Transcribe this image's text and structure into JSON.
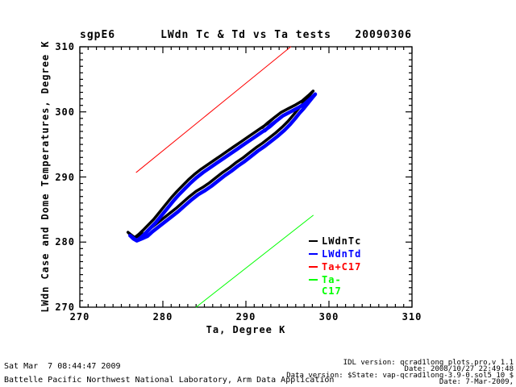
{
  "header": {
    "site": "sgpE6",
    "title": "LWdn Tc & Td vs Ta tests",
    "date": "20090306"
  },
  "axes": {
    "xlabel": "Ta, Degree K",
    "ylabel": "LWdn Case and Dome Temperatures, Degree K"
  },
  "legend": {
    "entries": [
      {
        "label": "LWdnTc",
        "color": "#000000"
      },
      {
        "label": "LWdnTd",
        "color": "#0000ff"
      },
      {
        "label": "Ta+C17",
        "color": "#ff0000"
      },
      {
        "label": "Ta-C17",
        "color": "#00ff00"
      }
    ]
  },
  "footer": {
    "left_line1": "Sat Mar  7 08:44:47 2009",
    "left_line2": "Battelle Pacific Northwest National Laboratory, Arm Data Application",
    "right_line1": "IDL version: qcrad1long_plots.pro,v 1.1",
    "right_line2": "Date: 2008/10/27 22:49:48",
    "right_line3": "Data version: $State: vap-qcrad1long-3.9-0.sol5_10 $",
    "right_line4": "Date: 7-Mar-2009,"
  },
  "chart_data": {
    "type": "line",
    "title": "LWdn Tc & Td vs Ta tests",
    "site": "sgpE6",
    "file_date": "20090306",
    "xlabel": "Ta, Degree K",
    "ylabel": "LWdn Case and Dome Temperatures, Degree K",
    "xlim": [
      270,
      310
    ],
    "ylim": [
      270,
      310
    ],
    "xticks": [
      270,
      280,
      290,
      300,
      310
    ],
    "yticks": [
      270,
      280,
      290,
      300,
      310
    ],
    "minor_tick_step": 1,
    "grid": false,
    "legend_position": "right-center",
    "series": [
      {
        "name": "LWdnTc",
        "color": "#000000",
        "width": 3.5,
        "points": [
          [
            275.8,
            281.5
          ],
          [
            276.2,
            281.0
          ],
          [
            276.6,
            280.7
          ],
          [
            277.2,
            281.0
          ],
          [
            277.9,
            281.4
          ],
          [
            278.5,
            282.1
          ],
          [
            279.2,
            282.8
          ],
          [
            280.0,
            283.6
          ],
          [
            280.8,
            284.4
          ],
          [
            281.6,
            285.2
          ],
          [
            282.4,
            286.1
          ],
          [
            283.2,
            287.0
          ],
          [
            284.0,
            287.8
          ],
          [
            284.8,
            288.4
          ],
          [
            285.6,
            289.1
          ],
          [
            286.4,
            289.9
          ],
          [
            287.2,
            290.7
          ],
          [
            288.0,
            291.4
          ],
          [
            288.8,
            292.2
          ],
          [
            289.6,
            292.9
          ],
          [
            290.4,
            293.7
          ],
          [
            291.2,
            294.5
          ],
          [
            292.0,
            295.2
          ],
          [
            292.8,
            296.0
          ],
          [
            293.6,
            296.8
          ],
          [
            294.4,
            297.7
          ],
          [
            295.1,
            298.6
          ],
          [
            295.7,
            299.5
          ],
          [
            296.2,
            300.3
          ],
          [
            296.7,
            301.0
          ],
          [
            297.2,
            301.8
          ],
          [
            297.7,
            302.6
          ],
          [
            298.1,
            303.2
          ],
          [
            297.5,
            302.5
          ],
          [
            296.8,
            301.7
          ],
          [
            296.0,
            301.1
          ],
          [
            295.1,
            300.5
          ],
          [
            294.2,
            299.9
          ],
          [
            293.4,
            299.1
          ],
          [
            292.6,
            298.3
          ],
          [
            292.0,
            297.6
          ],
          [
            292.7,
            298.4
          ],
          [
            293.4,
            299.1
          ],
          [
            292.6,
            298.2
          ],
          [
            291.8,
            297.5
          ],
          [
            291.0,
            296.8
          ],
          [
            290.2,
            296.1
          ],
          [
            289.4,
            295.4
          ],
          [
            288.6,
            294.7
          ],
          [
            287.8,
            294.0
          ],
          [
            287.0,
            293.3
          ],
          [
            286.2,
            292.6
          ],
          [
            285.4,
            291.9
          ],
          [
            284.6,
            291.2
          ],
          [
            283.8,
            290.4
          ],
          [
            283.1,
            289.6
          ],
          [
            282.4,
            288.7
          ],
          [
            281.7,
            287.8
          ],
          [
            281.0,
            286.8
          ],
          [
            280.3,
            285.7
          ],
          [
            279.6,
            284.6
          ],
          [
            278.9,
            283.5
          ],
          [
            278.2,
            282.6
          ],
          [
            277.6,
            281.8
          ],
          [
            277.1,
            281.2
          ],
          [
            276.6,
            280.7
          ],
          [
            276.1,
            281.2
          ],
          [
            275.8,
            281.5
          ]
        ]
      },
      {
        "name": "LWdnTd",
        "color": "#0000ff",
        "width": 4.5,
        "points": [
          [
            276.05,
            281.0
          ],
          [
            276.45,
            280.5
          ],
          [
            276.85,
            280.2
          ],
          [
            277.45,
            280.5
          ],
          [
            278.15,
            280.9
          ],
          [
            278.75,
            281.6
          ],
          [
            279.45,
            282.3
          ],
          [
            280.25,
            283.1
          ],
          [
            281.05,
            283.9
          ],
          [
            281.85,
            284.7
          ],
          [
            282.65,
            285.6
          ],
          [
            283.45,
            286.5
          ],
          [
            284.25,
            287.3
          ],
          [
            285.05,
            287.9
          ],
          [
            285.85,
            288.6
          ],
          [
            286.65,
            289.4
          ],
          [
            287.45,
            290.2
          ],
          [
            288.25,
            290.9
          ],
          [
            289.05,
            291.7
          ],
          [
            289.85,
            292.4
          ],
          [
            290.65,
            293.2
          ],
          [
            291.45,
            294.0
          ],
          [
            292.25,
            294.7
          ],
          [
            293.05,
            295.5
          ],
          [
            293.85,
            296.3
          ],
          [
            294.65,
            297.2
          ],
          [
            295.35,
            298.1
          ],
          [
            295.95,
            299.0
          ],
          [
            296.45,
            299.8
          ],
          [
            296.95,
            300.5
          ],
          [
            297.45,
            301.3
          ],
          [
            297.95,
            302.1
          ],
          [
            298.35,
            302.7
          ],
          [
            297.75,
            302.0
          ],
          [
            297.05,
            301.2
          ],
          [
            296.25,
            300.6
          ],
          [
            295.35,
            300.0
          ],
          [
            294.45,
            299.4
          ],
          [
            293.65,
            298.6
          ],
          [
            292.85,
            297.8
          ],
          [
            292.25,
            297.1
          ],
          [
            292.95,
            297.9
          ],
          [
            293.65,
            298.6
          ],
          [
            292.85,
            297.7
          ],
          [
            292.05,
            297.0
          ],
          [
            291.25,
            296.3
          ],
          [
            290.45,
            295.6
          ],
          [
            289.65,
            294.9
          ],
          [
            288.85,
            294.2
          ],
          [
            288.05,
            293.5
          ],
          [
            287.25,
            292.8
          ],
          [
            286.45,
            292.1
          ],
          [
            285.65,
            291.4
          ],
          [
            284.85,
            290.7
          ],
          [
            284.05,
            289.9
          ],
          [
            283.35,
            289.1
          ],
          [
            282.65,
            288.2
          ],
          [
            281.95,
            287.3
          ],
          [
            281.25,
            286.3
          ],
          [
            280.55,
            285.2
          ],
          [
            279.85,
            284.1
          ],
          [
            279.15,
            283.0
          ],
          [
            278.45,
            282.1
          ],
          [
            277.85,
            281.3
          ],
          [
            277.35,
            280.7
          ],
          [
            276.85,
            280.2
          ],
          [
            276.35,
            280.7
          ],
          [
            276.05,
            281.0
          ]
        ]
      },
      {
        "name": "Ta+C17",
        "color": "#ff0000",
        "width": 1,
        "points": [
          [
            276.8,
            290.7
          ],
          [
            295.4,
            310.0
          ]
        ]
      },
      {
        "name": "Ta-C17",
        "color": "#00ff00",
        "width": 1,
        "points": [
          [
            284.0,
            270.0
          ],
          [
            298.1,
            284.1
          ]
        ]
      }
    ]
  }
}
